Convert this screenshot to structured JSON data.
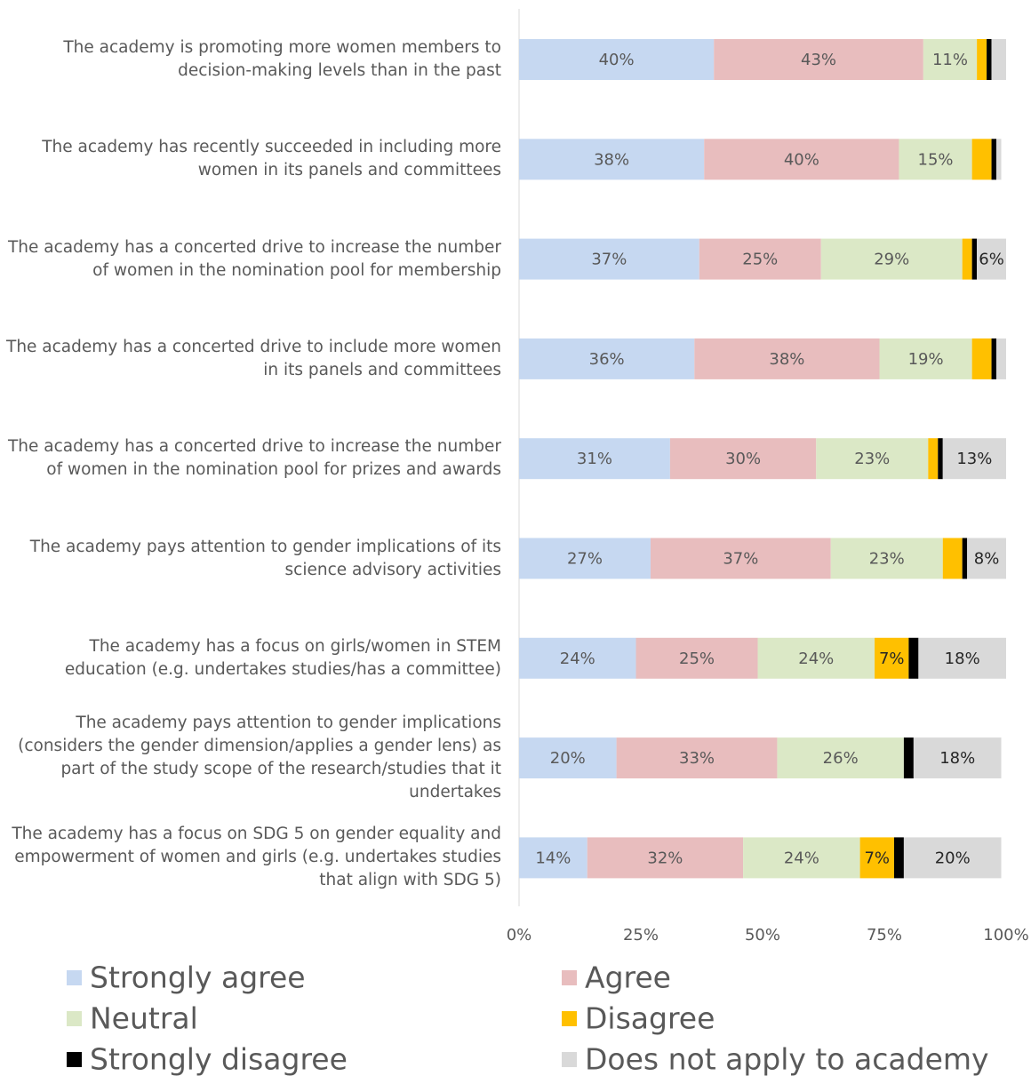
{
  "chart_data": {
    "type": "stacked_bar_horizontal",
    "categories": [
      "The academy is promoting more women members to decision-making levels than in the past",
      "The academy has recently succeeded in including more women in its panels and committees",
      "The academy has a concerted drive to increase the number of women in the nomination pool for membership",
      "The academy has a concerted drive to include more women in its panels and committees",
      "The academy has a concerted drive to increase the number of women in the nomination pool for prizes and awards",
      "The academy pays attention to gender implications of its science advisory activities",
      "The academy has a focus on girls/women in STEM education (e.g. undertakes studies/has a committee)",
      "The academy pays attention to gender implications (considers the gender dimension/applies a gender lens) as part of the study scope of the research/studies that it undertakes",
      "The academy has a focus on SDG 5 on gender equality and empowerment of women and girls (e.g. undertakes studies that align with SDG 5)"
    ],
    "series": [
      {
        "name": "Strongly agree",
        "color": "#c6d8f1",
        "values": [
          40,
          38,
          37,
          36,
          31,
          27,
          24,
          20,
          14
        ],
        "value_labels": [
          "40%",
          "38%",
          "37%",
          "36%",
          "31%",
          "27%",
          "24%",
          "20%",
          "14%"
        ]
      },
      {
        "name": "Agree",
        "color": "#e8bdbe",
        "values": [
          43,
          40,
          25,
          38,
          30,
          37,
          25,
          33,
          32
        ],
        "value_labels": [
          "43%",
          "40%",
          "25%",
          "38%",
          "30%",
          "37%",
          "25%",
          "33%",
          "32%"
        ]
      },
      {
        "name": "Neutral",
        "color": "#dbe8c6",
        "values": [
          11,
          15,
          29,
          19,
          23,
          23,
          24,
          26,
          24
        ],
        "value_labels": [
          "11%",
          "15%",
          "29%",
          "19%",
          "23%",
          "23%",
          "24%",
          "26%",
          "24%"
        ]
      },
      {
        "name": "Disagree",
        "color": "#ffc000",
        "values": [
          2,
          4,
          2,
          4,
          2,
          4,
          7,
          0,
          7
        ],
        "value_labels": [
          null,
          null,
          null,
          null,
          null,
          null,
          "7%",
          null,
          "7%"
        ]
      },
      {
        "name": "Strongly disagree",
        "color": "#000000",
        "values": [
          1,
          1,
          1,
          1,
          1,
          1,
          2,
          2,
          2
        ]
      },
      {
        "name": "Does not apply to academy",
        "color": "#d9d9d9",
        "values": [
          3,
          1,
          6,
          2,
          13,
          8,
          18,
          18,
          20
        ],
        "value_labels": [
          null,
          null,
          "6%",
          null,
          "13%",
          "8%",
          "18%",
          "18%",
          "20%"
        ]
      }
    ],
    "xlim": [
      0,
      100
    ],
    "xticks": [
      {
        "value": 0,
        "label": "0%"
      },
      {
        "value": 25,
        "label": "25%"
      },
      {
        "value": 50,
        "label": "50%"
      },
      {
        "value": 75,
        "label": "75%"
      },
      {
        "value": 100,
        "label": "100%"
      }
    ],
    "grid": false
  }
}
